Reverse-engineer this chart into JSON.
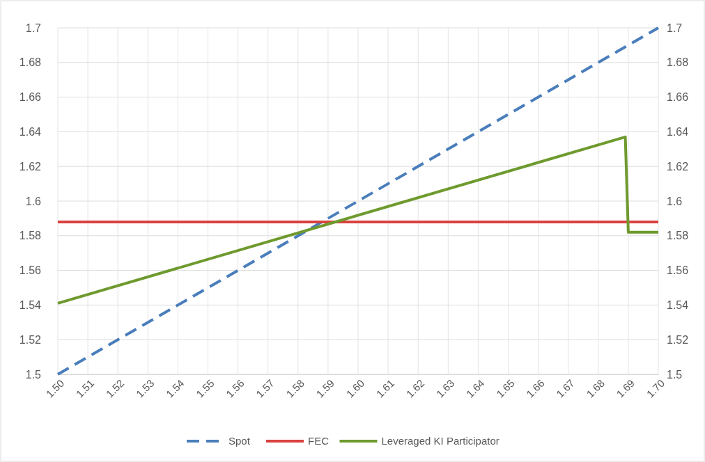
{
  "chart_data": {
    "type": "line",
    "xlim": [
      1.5,
      1.7
    ],
    "xticks": [
      {
        "value": 1.5,
        "label": "1.50"
      },
      {
        "value": 1.51,
        "label": "1.51"
      },
      {
        "value": 1.52,
        "label": "1.52"
      },
      {
        "value": 1.53,
        "label": "1.53"
      },
      {
        "value": 1.54,
        "label": "1.54"
      },
      {
        "value": 1.55,
        "label": "1.55"
      },
      {
        "value": 1.56,
        "label": "1.56"
      },
      {
        "value": 1.57,
        "label": "1.57"
      },
      {
        "value": 1.58,
        "label": "1.58"
      },
      {
        "value": 1.59,
        "label": "1.59"
      },
      {
        "value": 1.6,
        "label": "1.60"
      },
      {
        "value": 1.61,
        "label": "1.61"
      },
      {
        "value": 1.62,
        "label": "1.62"
      },
      {
        "value": 1.63,
        "label": "1.63"
      },
      {
        "value": 1.64,
        "label": "1.64"
      },
      {
        "value": 1.65,
        "label": "1.65"
      },
      {
        "value": 1.66,
        "label": "1.66"
      },
      {
        "value": 1.67,
        "label": "1.67"
      },
      {
        "value": 1.68,
        "label": "1.68"
      },
      {
        "value": 1.69,
        "label": "1.69"
      },
      {
        "value": 1.7,
        "label": "1.70"
      }
    ],
    "ylim": [
      1.5,
      1.7
    ],
    "yticks": [
      1.5,
      1.52,
      1.54,
      1.56,
      1.58,
      1.6,
      1.62,
      1.64,
      1.66,
      1.68,
      1.7
    ],
    "y2lim": [
      1.5,
      1.7
    ],
    "y2ticks": [
      1.5,
      1.52,
      1.54,
      1.56,
      1.58,
      1.6,
      1.62,
      1.64,
      1.66,
      1.68,
      1.7
    ],
    "grid": true,
    "legend": "bottom",
    "marker": "none",
    "series": [
      {
        "name": "Spot",
        "color": "#4a7ebb",
        "line_style": "dashed",
        "x": [
          1.5,
          1.7
        ],
        "values": [
          1.5,
          1.7
        ]
      },
      {
        "name": "FEC",
        "color": "#d9413f",
        "line_style": "solid",
        "x": [
          1.5,
          1.7
        ],
        "values": [
          1.588,
          1.588
        ]
      },
      {
        "name": "Leveraged KI Participator",
        "color": "#6e9a2e",
        "line_style": "solid",
        "x": [
          1.5,
          1.689,
          1.69,
          1.7
        ],
        "values": [
          1.541,
          1.637,
          1.582,
          1.582
        ]
      }
    ]
  }
}
